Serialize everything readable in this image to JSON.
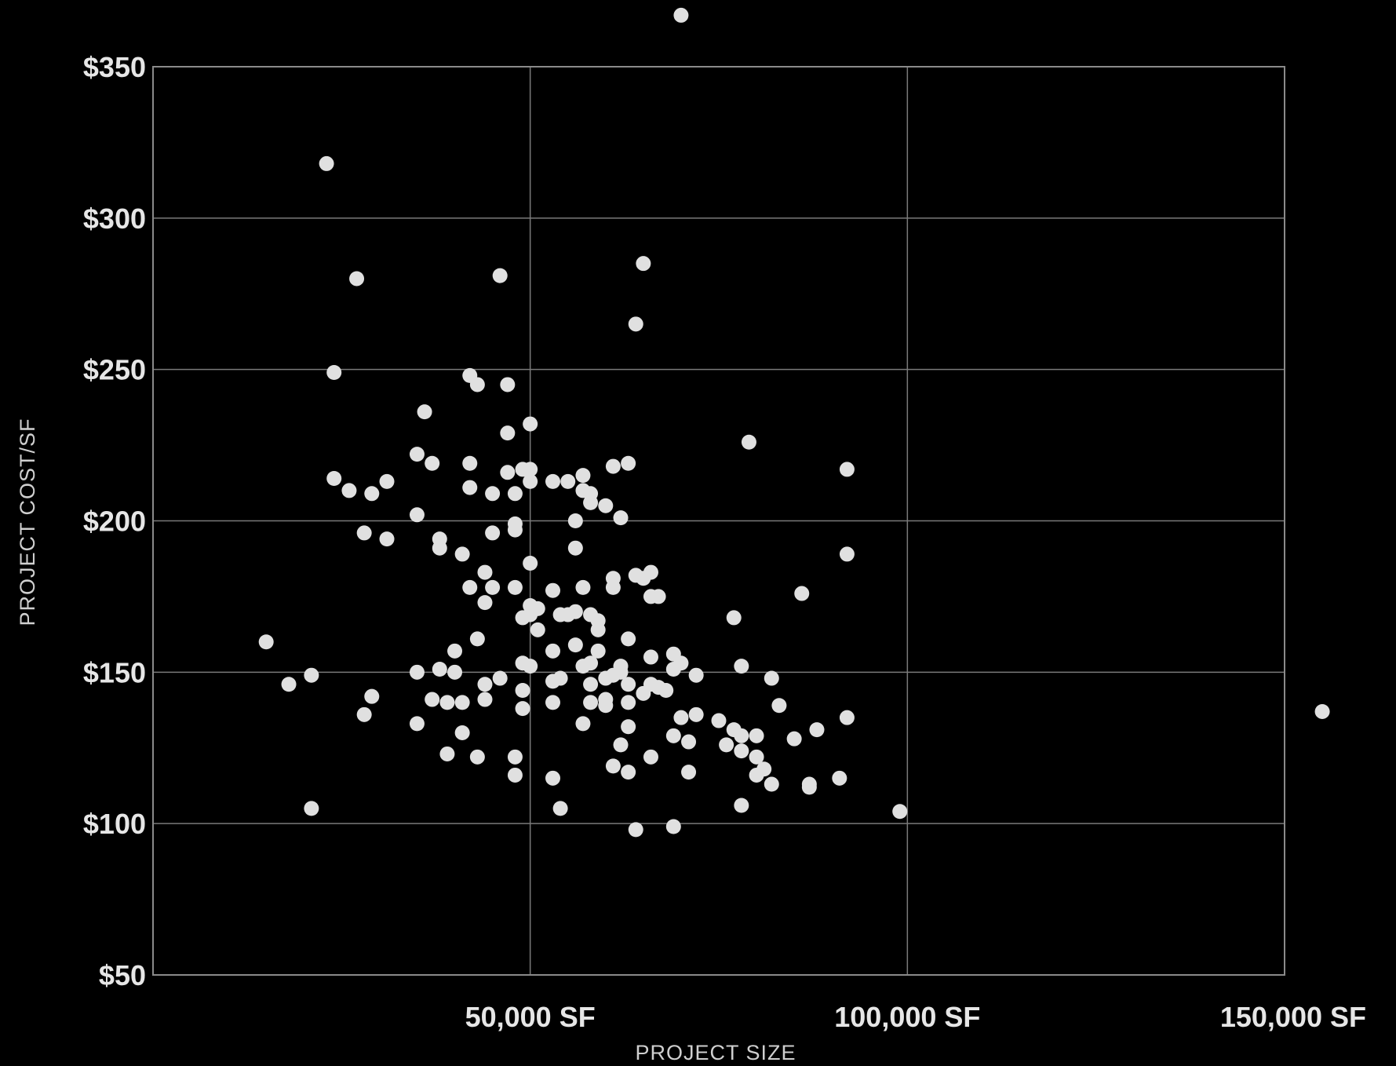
{
  "chart_data": {
    "type": "scatter",
    "title": "",
    "xlabel": "PROJECT SIZE",
    "ylabel": "PROJECT COST/SF",
    "xlim": [
      0,
      150000
    ],
    "ylim": [
      50,
      350
    ],
    "x_ticks": [
      {
        "value": 50000,
        "label": "50,000 SF"
      },
      {
        "value": 100000,
        "label": "100,000 SF"
      },
      {
        "value": 150000,
        "label": "150,000 SF"
      }
    ],
    "y_ticks": [
      {
        "value": 50,
        "label": "$50"
      },
      {
        "value": 100,
        "label": "$100"
      },
      {
        "value": 150,
        "label": "$150"
      },
      {
        "value": 200,
        "label": "$200"
      },
      {
        "value": 250,
        "label": "$250"
      },
      {
        "value": 300,
        "label": "$300"
      },
      {
        "value": 350,
        "label": "$350"
      }
    ],
    "grid": true,
    "point_color": "#e0e0e0",
    "background": "#000000",
    "points": [
      [
        70000,
        367
      ],
      [
        23000,
        318
      ],
      [
        65000,
        285
      ],
      [
        27000,
        280
      ],
      [
        46000,
        281
      ],
      [
        64000,
        265
      ],
      [
        24000,
        249
      ],
      [
        42000,
        248
      ],
      [
        43000,
        245
      ],
      [
        47000,
        245
      ],
      [
        36000,
        236
      ],
      [
        50000,
        232
      ],
      [
        47000,
        229
      ],
      [
        79000,
        226
      ],
      [
        35000,
        222
      ],
      [
        37000,
        219
      ],
      [
        42000,
        219
      ],
      [
        61000,
        218
      ],
      [
        63000,
        219
      ],
      [
        92000,
        217
      ],
      [
        47000,
        216
      ],
      [
        49000,
        217
      ],
      [
        50000,
        217
      ],
      [
        24000,
        214
      ],
      [
        31000,
        213
      ],
      [
        50000,
        213
      ],
      [
        53000,
        213
      ],
      [
        55000,
        213
      ],
      [
        57000,
        215
      ],
      [
        42000,
        211
      ],
      [
        26000,
        210
      ],
      [
        29000,
        209
      ],
      [
        45000,
        209
      ],
      [
        48000,
        209
      ],
      [
        57000,
        210
      ],
      [
        58000,
        209
      ],
      [
        58000,
        206
      ],
      [
        60000,
        205
      ],
      [
        35000,
        202
      ],
      [
        62000,
        201
      ],
      [
        56000,
        200
      ],
      [
        48000,
        199
      ],
      [
        28000,
        196
      ],
      [
        45000,
        196
      ],
      [
        48000,
        197
      ],
      [
        31000,
        194
      ],
      [
        38000,
        194
      ],
      [
        38000,
        191
      ],
      [
        56000,
        191
      ],
      [
        41000,
        189
      ],
      [
        92000,
        189
      ],
      [
        50000,
        186
      ],
      [
        44000,
        183
      ],
      [
        61000,
        181
      ],
      [
        64000,
        182
      ],
      [
        66000,
        183
      ],
      [
        65000,
        181
      ],
      [
        42000,
        178
      ],
      [
        45000,
        178
      ],
      [
        48000,
        178
      ],
      [
        61000,
        178
      ],
      [
        53000,
        177
      ],
      [
        57000,
        178
      ],
      [
        67000,
        175
      ],
      [
        66000,
        175
      ],
      [
        86000,
        176
      ],
      [
        44000,
        173
      ],
      [
        50000,
        172
      ],
      [
        51000,
        171
      ],
      [
        54000,
        169
      ],
      [
        56000,
        170
      ],
      [
        55000,
        169
      ],
      [
        50000,
        169
      ],
      [
        49000,
        168
      ],
      [
        58000,
        169
      ],
      [
        59000,
        167
      ],
      [
        77000,
        168
      ],
      [
        51000,
        164
      ],
      [
        59000,
        164
      ],
      [
        43000,
        161
      ],
      [
        63000,
        161
      ],
      [
        56000,
        159
      ],
      [
        15000,
        160
      ],
      [
        40000,
        157
      ],
      [
        53000,
        157
      ],
      [
        59000,
        157
      ],
      [
        66000,
        155
      ],
      [
        69000,
        156
      ],
      [
        70000,
        153
      ],
      [
        49000,
        153
      ],
      [
        50000,
        152
      ],
      [
        57000,
        152
      ],
      [
        58000,
        153
      ],
      [
        62000,
        152
      ],
      [
        69000,
        151
      ],
      [
        78000,
        152
      ],
      [
        21000,
        149
      ],
      [
        35000,
        150
      ],
      [
        38000,
        151
      ],
      [
        40000,
        150
      ],
      [
        46000,
        148
      ],
      [
        53000,
        147
      ],
      [
        54000,
        148
      ],
      [
        60000,
        148
      ],
      [
        61000,
        149
      ],
      [
        62000,
        150
      ],
      [
        72000,
        149
      ],
      [
        82000,
        148
      ],
      [
        18000,
        146
      ],
      [
        44000,
        146
      ],
      [
        58000,
        146
      ],
      [
        63000,
        146
      ],
      [
        66000,
        146
      ],
      [
        67000,
        145
      ],
      [
        68000,
        144
      ],
      [
        49000,
        144
      ],
      [
        65000,
        143
      ],
      [
        29000,
        142
      ],
      [
        44000,
        141
      ],
      [
        37000,
        141
      ],
      [
        39000,
        140
      ],
      [
        41000,
        140
      ],
      [
        53000,
        140
      ],
      [
        58000,
        140
      ],
      [
        60000,
        141
      ],
      [
        60000,
        139
      ],
      [
        63000,
        140
      ],
      [
        49000,
        138
      ],
      [
        83000,
        139
      ],
      [
        28000,
        136
      ],
      [
        35000,
        133
      ],
      [
        57000,
        133
      ],
      [
        70000,
        135
      ],
      [
        72000,
        136
      ],
      [
        75000,
        134
      ],
      [
        77000,
        131
      ],
      [
        92000,
        135
      ],
      [
        41000,
        130
      ],
      [
        63000,
        132
      ],
      [
        69000,
        129
      ],
      [
        78000,
        129
      ],
      [
        80000,
        129
      ],
      [
        88000,
        131
      ],
      [
        85000,
        128
      ],
      [
        71000,
        127
      ],
      [
        62000,
        126
      ],
      [
        76000,
        126
      ],
      [
        78000,
        124
      ],
      [
        39000,
        123
      ],
      [
        43000,
        122
      ],
      [
        48000,
        122
      ],
      [
        66000,
        122
      ],
      [
        80000,
        122
      ],
      [
        61000,
        119
      ],
      [
        63000,
        117
      ],
      [
        71000,
        117
      ],
      [
        81000,
        118
      ],
      [
        48000,
        116
      ],
      [
        53000,
        115
      ],
      [
        80000,
        116
      ],
      [
        82000,
        113
      ],
      [
        87000,
        113
      ],
      [
        87000,
        112
      ],
      [
        91000,
        115
      ],
      [
        21000,
        105
      ],
      [
        54000,
        105
      ],
      [
        78000,
        106
      ],
      [
        99000,
        104
      ],
      [
        69000,
        99
      ],
      [
        64000,
        98
      ],
      [
        155000,
        137
      ]
    ]
  }
}
